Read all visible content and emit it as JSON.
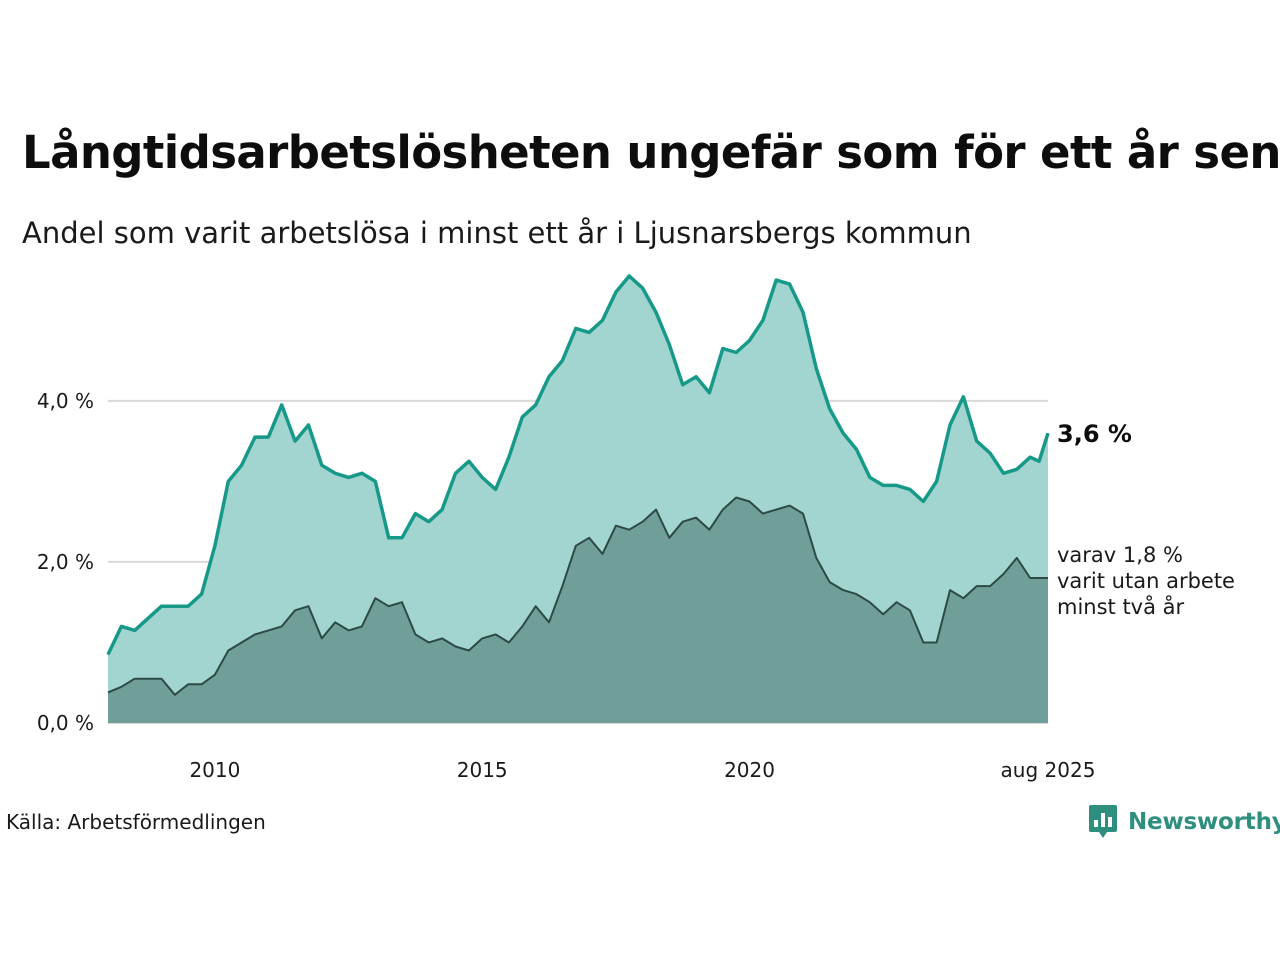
{
  "title": "Långtidsarbetslösheten ungefär som för ett år sen",
  "subtitle": "Andel som varit arbetslösa i minst ett år i Ljusnarsbergs kommun",
  "source": "Källa: Arbetsförmedlingen",
  "brand": {
    "name": "Newsworthy",
    "icon": "newsworthy-logo-icon"
  },
  "colors": {
    "area_total": "#a3d5d0",
    "line_total": "#17998a",
    "area_long": "#6f9f98",
    "line_long": "#2d4a45",
    "grid": "#d9d9d9"
  },
  "chart_data": {
    "type": "area",
    "title": "Långtidsarbetslösheten ungefär som för ett år sen",
    "subtitle": "Andel som varit arbetslösa i minst ett år i Ljusnarsbergs kommun",
    "x_range": [
      "2008-01",
      "2025-08"
    ],
    "ylim": [
      0,
      5.6
    ],
    "y_ticks": [
      {
        "value": 0,
        "label": "0,0 %"
      },
      {
        "value": 2,
        "label": "2,0 %"
      },
      {
        "value": 4,
        "label": "4,0 %"
      }
    ],
    "x_ticks": [
      {
        "date": "2010-01",
        "label": "2010"
      },
      {
        "date": "2015-01",
        "label": "2015"
      },
      {
        "date": "2020-01",
        "label": "2020"
      },
      {
        "date": "2025-08",
        "label": "aug 2025"
      }
    ],
    "grid": true,
    "series": [
      {
        "key": "total",
        "points": [
          [
            "2008-01",
            0.85
          ],
          [
            "2008-04",
            1.2
          ],
          [
            "2008-07",
            1.15
          ],
          [
            "2008-10",
            1.3
          ],
          [
            "2009-01",
            1.45
          ],
          [
            "2009-04",
            1.45
          ],
          [
            "2009-07",
            1.45
          ],
          [
            "2009-10",
            1.6
          ],
          [
            "2010-01",
            2.2
          ],
          [
            "2010-04",
            3.0
          ],
          [
            "2010-07",
            3.2
          ],
          [
            "2010-10",
            3.55
          ],
          [
            "2011-01",
            3.55
          ],
          [
            "2011-04",
            3.95
          ],
          [
            "2011-07",
            3.5
          ],
          [
            "2011-10",
            3.7
          ],
          [
            "2012-01",
            3.2
          ],
          [
            "2012-04",
            3.1
          ],
          [
            "2012-07",
            3.05
          ],
          [
            "2012-10",
            3.1
          ],
          [
            "2013-01",
            3.0
          ],
          [
            "2013-04",
            2.3
          ],
          [
            "2013-07",
            2.3
          ],
          [
            "2013-10",
            2.6
          ],
          [
            "2014-01",
            2.5
          ],
          [
            "2014-04",
            2.65
          ],
          [
            "2014-07",
            3.1
          ],
          [
            "2014-10",
            3.25
          ],
          [
            "2015-01",
            3.05
          ],
          [
            "2015-04",
            2.9
          ],
          [
            "2015-07",
            3.3
          ],
          [
            "2015-10",
            3.8
          ],
          [
            "2016-01",
            3.95
          ],
          [
            "2016-04",
            4.3
          ],
          [
            "2016-07",
            4.5
          ],
          [
            "2016-10",
            4.9
          ],
          [
            "2017-01",
            4.85
          ],
          [
            "2017-04",
            5.0
          ],
          [
            "2017-07",
            5.35
          ],
          [
            "2017-10",
            5.55
          ],
          [
            "2018-01",
            5.4
          ],
          [
            "2018-04",
            5.1
          ],
          [
            "2018-07",
            4.7
          ],
          [
            "2018-10",
            4.2
          ],
          [
            "2019-01",
            4.3
          ],
          [
            "2019-04",
            4.1
          ],
          [
            "2019-07",
            4.65
          ],
          [
            "2019-10",
            4.6
          ],
          [
            "2020-01",
            4.75
          ],
          [
            "2020-04",
            5.0
          ],
          [
            "2020-07",
            5.5
          ],
          [
            "2020-10",
            5.45
          ],
          [
            "2021-01",
            5.1
          ],
          [
            "2021-04",
            4.4
          ],
          [
            "2021-07",
            3.9
          ],
          [
            "2021-10",
            3.6
          ],
          [
            "2022-01",
            3.4
          ],
          [
            "2022-04",
            3.05
          ],
          [
            "2022-07",
            2.95
          ],
          [
            "2022-10",
            2.95
          ],
          [
            "2023-01",
            2.9
          ],
          [
            "2023-04",
            2.75
          ],
          [
            "2023-07",
            3.0
          ],
          [
            "2023-10",
            3.7
          ],
          [
            "2024-01",
            4.05
          ],
          [
            "2024-04",
            3.5
          ],
          [
            "2024-07",
            3.35
          ],
          [
            "2024-10",
            3.1
          ],
          [
            "2025-01",
            3.15
          ],
          [
            "2025-04",
            3.3
          ],
          [
            "2025-06",
            3.25
          ],
          [
            "2025-08",
            3.6
          ]
        ]
      },
      {
        "key": "long",
        "points": [
          [
            "2008-01",
            0.38
          ],
          [
            "2008-04",
            0.45
          ],
          [
            "2008-07",
            0.55
          ],
          [
            "2008-10",
            0.55
          ],
          [
            "2009-01",
            0.55
          ],
          [
            "2009-04",
            0.35
          ],
          [
            "2009-07",
            0.48
          ],
          [
            "2009-10",
            0.48
          ],
          [
            "2010-01",
            0.6
          ],
          [
            "2010-04",
            0.9
          ],
          [
            "2010-07",
            1.0
          ],
          [
            "2010-10",
            1.1
          ],
          [
            "2011-01",
            1.15
          ],
          [
            "2011-04",
            1.2
          ],
          [
            "2011-07",
            1.4
          ],
          [
            "2011-10",
            1.45
          ],
          [
            "2012-01",
            1.05
          ],
          [
            "2012-04",
            1.25
          ],
          [
            "2012-07",
            1.15
          ],
          [
            "2012-10",
            1.2
          ],
          [
            "2013-01",
            1.55
          ],
          [
            "2013-04",
            1.45
          ],
          [
            "2013-07",
            1.5
          ],
          [
            "2013-10",
            1.1
          ],
          [
            "2014-01",
            1.0
          ],
          [
            "2014-04",
            1.05
          ],
          [
            "2014-07",
            0.95
          ],
          [
            "2014-10",
            0.9
          ],
          [
            "2015-01",
            1.05
          ],
          [
            "2015-04",
            1.1
          ],
          [
            "2015-07",
            1.0
          ],
          [
            "2015-10",
            1.2
          ],
          [
            "2016-01",
            1.45
          ],
          [
            "2016-04",
            1.25
          ],
          [
            "2016-07",
            1.7
          ],
          [
            "2016-10",
            2.2
          ],
          [
            "2017-01",
            2.3
          ],
          [
            "2017-04",
            2.1
          ],
          [
            "2017-07",
            2.45
          ],
          [
            "2017-10",
            2.4
          ],
          [
            "2018-01",
            2.5
          ],
          [
            "2018-04",
            2.65
          ],
          [
            "2018-07",
            2.3
          ],
          [
            "2018-10",
            2.5
          ],
          [
            "2019-01",
            2.55
          ],
          [
            "2019-04",
            2.4
          ],
          [
            "2019-07",
            2.65
          ],
          [
            "2019-10",
            2.8
          ],
          [
            "2020-01",
            2.75
          ],
          [
            "2020-04",
            2.6
          ],
          [
            "2020-07",
            2.65
          ],
          [
            "2020-10",
            2.7
          ],
          [
            "2021-01",
            2.6
          ],
          [
            "2021-04",
            2.05
          ],
          [
            "2021-07",
            1.75
          ],
          [
            "2021-10",
            1.65
          ],
          [
            "2022-01",
            1.6
          ],
          [
            "2022-04",
            1.5
          ],
          [
            "2022-07",
            1.35
          ],
          [
            "2022-10",
            1.5
          ],
          [
            "2023-01",
            1.4
          ],
          [
            "2023-04",
            1.0
          ],
          [
            "2023-07",
            1.0
          ],
          [
            "2023-10",
            1.65
          ],
          [
            "2024-01",
            1.55
          ],
          [
            "2024-04",
            1.7
          ],
          [
            "2024-07",
            1.7
          ],
          [
            "2024-10",
            1.85
          ],
          [
            "2025-01",
            2.05
          ],
          [
            "2025-04",
            1.8
          ],
          [
            "2025-06",
            1.8
          ],
          [
            "2025-08",
            1.8
          ]
        ]
      }
    ],
    "annotations": {
      "total_label": "3,6 %",
      "long_label_lines": [
        "varav 1,8 %",
        "varit utan arbete",
        "minst två år"
      ]
    }
  }
}
